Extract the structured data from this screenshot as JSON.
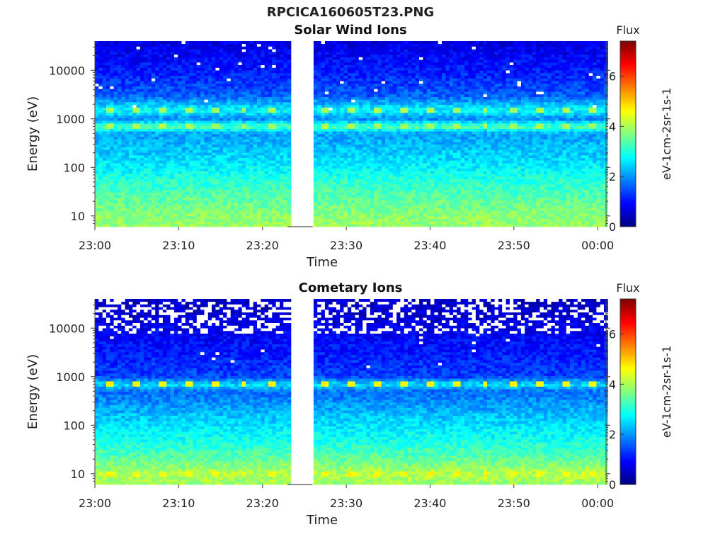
{
  "figure": {
    "title": "RPCICA160605T23.PNG"
  },
  "chart_data": [
    {
      "type": "heatmap",
      "title": "Solar Wind Ions",
      "xlabel": "Time",
      "ylabel": "Energy (eV)",
      "x_ticks": [
        "23:00",
        "23:10",
        "23:20",
        "23:30",
        "23:40",
        "23:50",
        "00:00"
      ],
      "x_range": [
        "23:00",
        "00:01"
      ],
      "y_scale": "log",
      "y_ticks": [
        10,
        100,
        1000,
        10000
      ],
      "y_range": [
        6,
        40000
      ],
      "data_gap": [
        "23:23",
        "23:26"
      ],
      "colorbar": {
        "label": "eV-1cm-2sr-1s-1",
        "title": "Flux",
        "ticks": [
          0,
          2,
          4,
          6
        ],
        "range": [
          0,
          7.4
        ],
        "colormap": "jet"
      },
      "flux_profile": {
        "energy_eV": [
          6,
          10,
          20,
          50,
          100,
          200,
          500,
          700,
          1000,
          1500,
          3000,
          10000,
          40000
        ],
        "mean_flux": [
          3.9,
          3.8,
          3.5,
          3.1,
          2.7,
          2.4,
          2.1,
          3.4,
          1.9,
          2.8,
          1.6,
          1.1,
          0.7
        ]
      },
      "periodic_peak": {
        "energies_eV": [
          700,
          1500
        ],
        "flux": 4.0,
        "period_minutes": 3.2
      }
    },
    {
      "type": "heatmap",
      "title": "Cometary Ions",
      "xlabel": "Time",
      "ylabel": "Energy (eV)",
      "x_ticks": [
        "23:00",
        "23:10",
        "23:20",
        "23:30",
        "23:40",
        "23:50",
        "00:00"
      ],
      "x_range": [
        "23:00",
        "00:01"
      ],
      "y_scale": "log",
      "y_ticks": [
        10,
        100,
        1000,
        10000
      ],
      "y_range": [
        6,
        40000
      ],
      "data_gap": [
        "23:23",
        "23:26"
      ],
      "colorbar": {
        "label": "eV-1cm-2sr-1s-1",
        "title": "Flux",
        "ticks": [
          0,
          2,
          4,
          6
        ],
        "range": [
          0,
          7.4
        ],
        "colormap": "jet"
      },
      "flux_profile": {
        "energy_eV": [
          6,
          10,
          20,
          50,
          100,
          200,
          500,
          700,
          1000,
          3000,
          10000,
          20000,
          40000
        ],
        "mean_flux": [
          3.9,
          4.1,
          3.5,
          2.9,
          2.6,
          2.2,
          1.7,
          2.6,
          1.4,
          1.1,
          0.8,
          0.6,
          0.5
        ]
      },
      "periodic_peak": {
        "energies_eV": [
          10,
          700
        ],
        "flux": 4.6,
        "period_minutes": 3.2
      }
    }
  ]
}
